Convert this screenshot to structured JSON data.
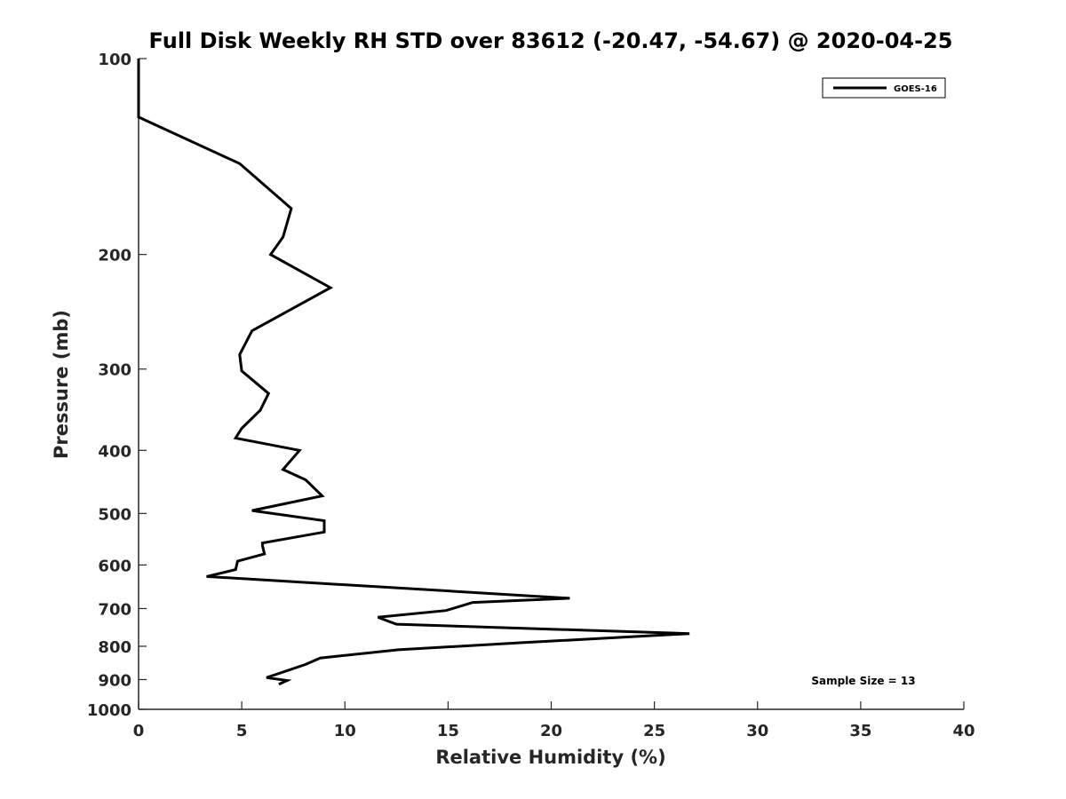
{
  "chart_data": {
    "type": "line",
    "title": "Full Disk Weekly RH STD over 83612 (-20.47, -54.67) @ 2020-04-25",
    "xlabel": "Relative Humidity (%)",
    "ylabel": "Pressure (mb)",
    "xlim": [
      0,
      40
    ],
    "ylim": [
      1000,
      100
    ],
    "y_scale": "log",
    "x_ticks": [
      0,
      5,
      10,
      15,
      20,
      25,
      30,
      35,
      40
    ],
    "y_ticks": [
      100,
      200,
      300,
      400,
      500,
      600,
      700,
      800,
      900,
      1000
    ],
    "grid": false,
    "legend_position": "top-right",
    "series": [
      {
        "name": "GOES-16",
        "color": "#000000",
        "x": [
          0,
          0,
          4.9,
          7.4,
          7.0,
          6.4,
          9.3,
          5.5,
          4.9,
          5.0,
          6.3,
          5.9,
          5.0,
          4.7,
          7.8,
          7.0,
          8.1,
          8.9,
          5.5,
          9.0,
          9.0,
          6.0,
          6.0,
          6.1,
          4.8,
          4.7,
          3.3,
          15.4,
          20.9,
          16.2,
          14.9,
          11.6,
          12.5,
          26.7,
          18.5,
          12.6,
          8.8,
          8.1,
          6.2,
          7.2,
          6.8
        ],
        "y": [
          100,
          123,
          145,
          170,
          188,
          200,
          225,
          262,
          285,
          302,
          327,
          347,
          370,
          383,
          400,
          428,
          444,
          470,
          495,
          513,
          534,
          555,
          560,
          577,
          592,
          610,
          625,
          659,
          675,
          685,
          705,
          722,
          740,
          765,
          790,
          810,
          834,
          853,
          894,
          903,
          915
        ]
      }
    ],
    "annotations": [
      "Sample Size = 13"
    ]
  }
}
